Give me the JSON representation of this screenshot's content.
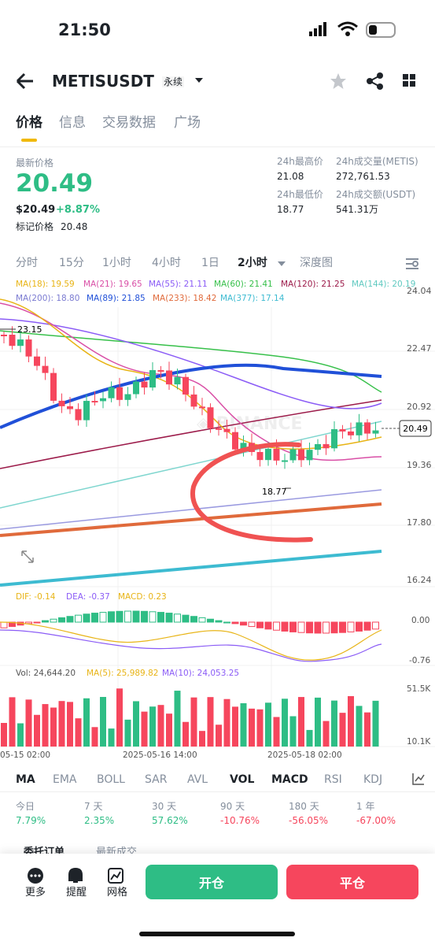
{
  "status": {
    "time": "21:50"
  },
  "header": {
    "symbol": "METISUSDT",
    "tag": "永续"
  },
  "tabs": [
    "价格",
    "信息",
    "交易数据",
    "广场"
  ],
  "price": {
    "label": "最新价格",
    "value": "20.49",
    "usd": "$20.49",
    "change": "+8.87%",
    "mark_label": "标记价格",
    "mark_value": "20.48"
  },
  "stats": [
    {
      "label": "24h最高价",
      "value": "21.08"
    },
    {
      "label": "24h成交量(METIS)",
      "value": "272,761.53"
    },
    {
      "label": "24h最低价",
      "value": "18.77"
    },
    {
      "label": "24h成交额(USDT)",
      "value": "541.31万"
    }
  ],
  "intervals": [
    "分时",
    "15分",
    "1小时",
    "4小时",
    "1日",
    "2小时",
    "深度图"
  ],
  "ma_legend": [
    "MA(18): 19.59",
    "MA(21): 19.65",
    "MA(55): 21.11",
    "MA(60): 21.41",
    "MA(120): 21.25",
    "MA(144): 20.19",
    "MA(200): 18.80",
    "MA(89): 21.85",
    "MA(233): 18.42",
    "MA(377): 17.14"
  ],
  "price_axis": [
    "24.04",
    "22.47",
    "20.92",
    "19.36",
    "17.80",
    "16.24"
  ],
  "annotations": {
    "high": "23.15",
    "low": "18.77",
    "current": "20.49"
  },
  "macd": {
    "legend": [
      "DIF: -0.14",
      "DEA: -0.37",
      "MACD: 0.23"
    ],
    "axis": [
      "0.00",
      "-0.76"
    ]
  },
  "vol": {
    "legend": [
      "Vol: 24,644.20",
      "MA(5): 25,989.82",
      "MA(10): 24,053.25"
    ],
    "axis": [
      "51.5K",
      "10.1K"
    ]
  },
  "dates": [
    "05-15 02:00",
    "2025-05-16 14:00",
    "2025-05-18 02:00"
  ],
  "indicators": [
    "MA",
    "EMA",
    "BOLL",
    "SAR",
    "AVL",
    "VOL",
    "MACD",
    "RSI",
    "KDJ"
  ],
  "periods": [
    {
      "label": "今日",
      "value": "7.79%"
    },
    {
      "label": "7 天",
      "value": "2.35%"
    },
    {
      "label": "30 天",
      "value": "57.62%"
    },
    {
      "label": "90 天",
      "value": "-10.76%"
    },
    {
      "label": "180 天",
      "value": "-56.05%"
    },
    {
      "label": "1 年",
      "value": "-67.00%"
    }
  ],
  "order_tabs": [
    "委托订单",
    "最新成交"
  ],
  "actions": [
    "更多",
    "提醒",
    "网格"
  ],
  "buttons": [
    "开仓",
    "平仓"
  ]
}
